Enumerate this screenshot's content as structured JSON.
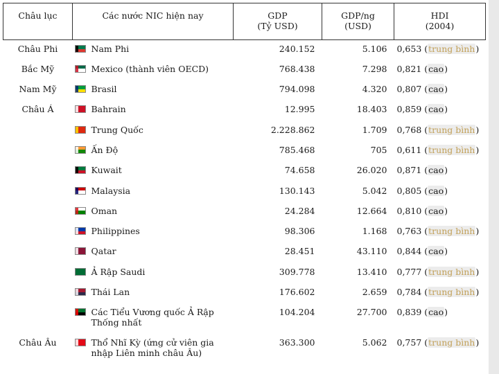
{
  "headers": {
    "continent": "Châu lục",
    "countries": "Các nước NIC hiện nay",
    "gdp_line1": "GDP",
    "gdp_line2": "(Tỷ USD)",
    "gdpc_line1": "GDP/ng",
    "gdpc_line2": "(USD)",
    "hdi_line1": "HDI",
    "hdi_line2": "(2004)"
  },
  "rows": [
    {
      "continent": "Châu Phi",
      "country": "Nam Phi",
      "gdp": "240.152",
      "gdp_per_capita": "5.106",
      "hdi_value": "0,653",
      "hdi_level": "trung bình",
      "flag": [
        "#007a4d",
        "#de3831",
        "#000000"
      ]
    },
    {
      "continent": "Bắc Mỹ",
      "country": "Mexico (thành viên OECD)",
      "gdp": "768.438",
      "gdp_per_capita": "7.298",
      "hdi_value": "0,821",
      "hdi_level": "cao",
      "flag": [
        "#006847",
        "#ffffff",
        "#ce1126"
      ]
    },
    {
      "continent": "Nam Mỹ",
      "country": "Brasil",
      "gdp": "794.098",
      "gdp_per_capita": "4.320",
      "hdi_value": "0,807",
      "hdi_level": "cao",
      "flag": [
        "#009c3b",
        "#ffdf00",
        "#002776"
      ]
    },
    {
      "continent": "Châu Á",
      "country": "Bahrain",
      "gdp": "12.995",
      "gdp_per_capita": "18.403",
      "hdi_value": "0,859",
      "hdi_level": "cao",
      "flag": [
        "#ce1126",
        "#ce1126",
        "#ffffff"
      ]
    },
    {
      "continent": "",
      "country": "Trung Quốc",
      "gdp": "2.228.862",
      "gdp_per_capita": "1.709",
      "hdi_value": "0,768",
      "hdi_level": "trung bình",
      "flag": [
        "#de2910",
        "#de2910",
        "#ffde00"
      ]
    },
    {
      "continent": "",
      "country": "Ấn Độ",
      "gdp": "785.468",
      "gdp_per_capita": "705",
      "hdi_value": "0,611",
      "hdi_level": "trung bình",
      "flag": [
        "#ff9933",
        "#138808",
        "#ffffff"
      ]
    },
    {
      "continent": "",
      "country": "Kuwait",
      "gdp": "74.658",
      "gdp_per_capita": "26.020",
      "hdi_value": "0,871",
      "hdi_level": "cao",
      "flag": [
        "#007a3d",
        "#ce1126",
        "#000000"
      ]
    },
    {
      "continent": "",
      "country": "Malaysia",
      "gdp": "130.143",
      "gdp_per_capita": "5.042",
      "hdi_value": "0,805",
      "hdi_level": "cao",
      "flag": [
        "#cc0001",
        "#ffffff",
        "#010066"
      ]
    },
    {
      "continent": "",
      "country": "Oman",
      "gdp": "24.284",
      "gdp_per_capita": "12.664",
      "hdi_value": "0,810",
      "hdi_level": "cao",
      "flag": [
        "#ffffff",
        "#008000",
        "#db161b"
      ]
    },
    {
      "continent": "",
      "country": "Philippines",
      "gdp": "98.306",
      "gdp_per_capita": "1.168",
      "hdi_value": "0,763",
      "hdi_level": "trung bình",
      "flag": [
        "#0038a8",
        "#ce1126",
        "#ffffff"
      ]
    },
    {
      "continent": "",
      "country": "Qatar",
      "gdp": "28.451",
      "gdp_per_capita": "43.110",
      "hdi_value": "0,844",
      "hdi_level": "cao",
      "flag": [
        "#8a1538",
        "#8a1538",
        "#ffffff"
      ]
    },
    {
      "continent": "",
      "country": "Ả Rập Saudi",
      "gdp": "309.778",
      "gdp_per_capita": "13.410",
      "hdi_value": "0,777",
      "hdi_level": "trung bình",
      "flag": [
        "#006c35",
        "#006c35",
        "#006c35"
      ]
    },
    {
      "continent": "",
      "country": "Thái Lan",
      "gdp": "176.602",
      "gdp_per_capita": "2.659",
      "hdi_value": "0,784",
      "hdi_level": "trung bình",
      "flag": [
        "#a51931",
        "#2d2a4a",
        "#f4f5f8"
      ]
    },
    {
      "continent": "",
      "country": "Các Tiểu Vương quốc Ả Rập Thống nhất",
      "gdp": "104.204",
      "gdp_per_capita": "27.700",
      "hdi_value": "0,839",
      "hdi_level": "cao",
      "flag": [
        "#00732f",
        "#000000",
        "#ff0000"
      ]
    },
    {
      "continent": "Châu Âu",
      "country": "Thổ Nhĩ Kỳ (ứng cử viên gia nhập Liên minh châu Âu)",
      "gdp": "363.300",
      "gdp_per_capita": "5.062",
      "hdi_value": "0,757",
      "hdi_level": "trung bình",
      "flag": [
        "#e30a17",
        "#e30a17",
        "#ffffff"
      ]
    }
  ],
  "colors": {
    "hdi_medium": "#c2a15a",
    "hdi_high": "#1a1a1a",
    "header_border": "#333333"
  }
}
